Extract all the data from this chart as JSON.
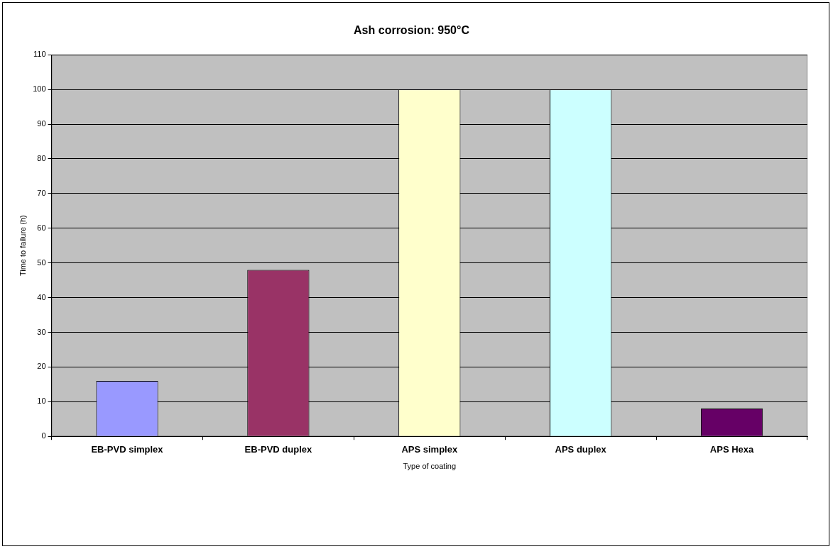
{
  "chart_data": {
    "type": "bar",
    "title": "Ash corrosion: 950°C",
    "xlabel": "Type of coating",
    "ylabel": "Time to failure (h)",
    "categories": [
      "EB-PVD simplex",
      "EB-PVD duplex",
      "APS simplex",
      "APS duplex",
      "APS Hexa"
    ],
    "values": [
      16,
      48,
      100,
      100,
      8
    ],
    "colors": [
      "#9999ff",
      "#993366",
      "#ffffcc",
      "#ccffff",
      "#660066"
    ],
    "ylim": [
      0,
      110
    ],
    "yticks": [
      0,
      10,
      20,
      30,
      40,
      50,
      60,
      70,
      80,
      90,
      100,
      110
    ],
    "grid": "y",
    "legend": false
  }
}
